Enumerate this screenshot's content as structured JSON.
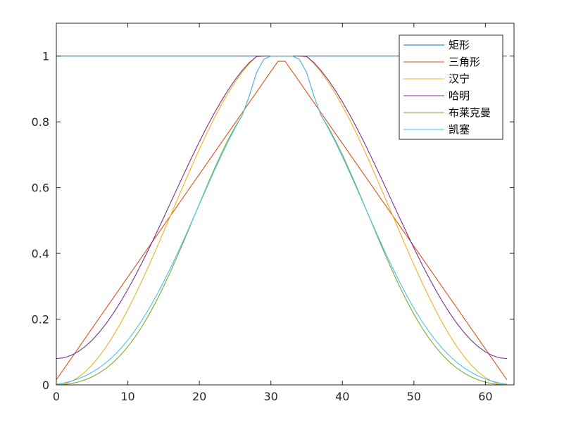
{
  "chart_data": {
    "type": "line",
    "title": "",
    "xlabel": "",
    "ylabel": "",
    "xlim": [
      0,
      64
    ],
    "ylim": [
      0,
      1.1
    ],
    "x_ticks": [
      0,
      10,
      20,
      30,
      40,
      50,
      60
    ],
    "y_ticks": [
      0,
      0.2,
      0.4,
      0.6,
      0.8,
      1
    ],
    "x_tick_labels": [
      "0",
      "10",
      "20",
      "30",
      "40",
      "50",
      "60"
    ],
    "y_tick_labels": [
      "0",
      "0.2",
      "0.4",
      "0.6",
      "0.8",
      "1"
    ],
    "grid": false,
    "legend_position": "top-right",
    "x": [
      0,
      1,
      2,
      3,
      4,
      5,
      6,
      7,
      8,
      9,
      10,
      11,
      12,
      13,
      14,
      15,
      16,
      17,
      18,
      19,
      20,
      21,
      22,
      23,
      24,
      25,
      26,
      27,
      28,
      29,
      30,
      31,
      32,
      33,
      34,
      35,
      36,
      37,
      38,
      39,
      40,
      41,
      42,
      43,
      44,
      45,
      46,
      47,
      48,
      49,
      50,
      51,
      52,
      53,
      54,
      55,
      56,
      57,
      58,
      59,
      60,
      61,
      62,
      63
    ],
    "series": [
      {
        "name": "矩形",
        "color": "#0072BD",
        "values": [
          1,
          1,
          1,
          1,
          1,
          1,
          1,
          1,
          1,
          1,
          1,
          1,
          1,
          1,
          1,
          1,
          1,
          1,
          1,
          1,
          1,
          1,
          1,
          1,
          1,
          1,
          1,
          1,
          1,
          1,
          1,
          1,
          1,
          1,
          1,
          1,
          1,
          1,
          1,
          1,
          1,
          1,
          1,
          1,
          1,
          1,
          1,
          1,
          1,
          1,
          1,
          1,
          1,
          1,
          1,
          1,
          1,
          1,
          1,
          1,
          1,
          1,
          1,
          1
        ]
      },
      {
        "name": "三角形",
        "color": "#D95319",
        "values": [
          0.0156,
          0.0469,
          0.0781,
          0.1094,
          0.1406,
          0.1719,
          0.2031,
          0.2344,
          0.2656,
          0.2969,
          0.3281,
          0.3594,
          0.3906,
          0.4219,
          0.4531,
          0.4844,
          0.5156,
          0.5469,
          0.5781,
          0.6094,
          0.6406,
          0.6719,
          0.7031,
          0.7344,
          0.7656,
          0.7969,
          0.8281,
          0.8594,
          0.8906,
          0.9219,
          0.9531,
          0.9844,
          0.9844,
          0.9531,
          0.9219,
          0.8906,
          0.8594,
          0.8281,
          0.7969,
          0.7656,
          0.7344,
          0.7031,
          0.6719,
          0.6406,
          0.6094,
          0.5781,
          0.5469,
          0.5156,
          0.4844,
          0.4531,
          0.4219,
          0.3906,
          0.3594,
          0.3281,
          0.2969,
          0.2656,
          0.2344,
          0.2031,
          0.1719,
          0.1406,
          0.1094,
          0.0781,
          0.0469,
          0.0156
        ]
      },
      {
        "name": "汉宁",
        "color": "#EDB120",
        "values": [
          0,
          0.0025,
          0.0099,
          0.0222,
          0.0393,
          0.0609,
          0.0868,
          0.1168,
          0.1507,
          0.1882,
          0.2288,
          0.2722,
          0.318,
          0.3658,
          0.4151,
          0.4655,
          0.5166,
          0.5677,
          0.6184,
          0.6683,
          0.7167,
          0.7632,
          0.8074,
          0.8487,
          0.8868,
          0.9212,
          0.9515,
          0.9775,
          0.9987,
          1.0,
          1.0,
          1.0,
          1.0,
          1.0,
          1.0,
          0.9987,
          0.9775,
          0.9515,
          0.9212,
          0.8868,
          0.8487,
          0.8074,
          0.7632,
          0.7167,
          0.6683,
          0.6184,
          0.5677,
          0.5166,
          0.4655,
          0.4151,
          0.3658,
          0.318,
          0.2722,
          0.2288,
          0.1882,
          0.1507,
          0.1168,
          0.0868,
          0.0609,
          0.0393,
          0.0222,
          0.0099,
          0.0025,
          0
        ]
      },
      {
        "name": "哈明",
        "color": "#7E2F8E",
        "values": [
          0.08,
          0.0823,
          0.0891,
          0.1004,
          0.1161,
          0.136,
          0.1599,
          0.1875,
          0.2186,
          0.2531,
          0.2905,
          0.3304,
          0.3726,
          0.4165,
          0.4619,
          0.5083,
          0.5552,
          0.6023,
          0.6489,
          0.6948,
          0.7394,
          0.7822,
          0.8229,
          0.861,
          0.8961,
          0.928,
          0.9563,
          0.9807,
          0.9987,
          1.0,
          1.0,
          1.0,
          1.0,
          1.0,
          1.0,
          0.9987,
          0.9807,
          0.9563,
          0.928,
          0.8961,
          0.861,
          0.8229,
          0.7822,
          0.7394,
          0.6948,
          0.6489,
          0.6023,
          0.5552,
          0.5083,
          0.4619,
          0.4165,
          0.3726,
          0.3304,
          0.2905,
          0.2531,
          0.2186,
          0.1875,
          0.1599,
          0.136,
          0.1161,
          0.1004,
          0.0891,
          0.0823,
          0.08
        ]
      },
      {
        "name": "布莱克曼",
        "color": "#77AC30",
        "values": [
          0,
          0.0009,
          0.0036,
          0.0083,
          0.0151,
          0.0243,
          0.0362,
          0.0511,
          0.0692,
          0.0909,
          0.1162,
          0.1454,
          0.1784,
          0.2152,
          0.2556,
          0.2993,
          0.346,
          0.3951,
          0.446,
          0.498,
          0.5503,
          0.602,
          0.6523,
          0.7001,
          0.7446,
          0.7848,
          0.82,
          0.88,
          0.95,
          0.99,
          1.0,
          1.0,
          1.0,
          1.0,
          0.99,
          0.95,
          0.88,
          0.82,
          0.7848,
          0.7446,
          0.7001,
          0.6523,
          0.602,
          0.5503,
          0.498,
          0.446,
          0.3951,
          0.346,
          0.2993,
          0.2556,
          0.2152,
          0.1784,
          0.1454,
          0.1162,
          0.0909,
          0.0692,
          0.0511,
          0.0362,
          0.0243,
          0.0151,
          0.0083,
          0.0036,
          0.0009,
          0
        ]
      },
      {
        "name": "凯塞",
        "color": "#4DBEEE",
        "values": [
          0.0023,
          0.0059,
          0.011,
          0.018,
          0.027,
          0.0382,
          0.052,
          0.0685,
          0.088,
          0.1105,
          0.1363,
          0.1654,
          0.1977,
          0.2332,
          0.2718,
          0.3131,
          0.3569,
          0.4029,
          0.4505,
          0.4994,
          0.5488,
          0.5982,
          0.6468,
          0.6941,
          0.7393,
          0.7817,
          0.8207,
          0.88,
          0.95,
          0.99,
          1.0,
          1.0,
          1.0,
          1.0,
          0.99,
          0.95,
          0.88,
          0.8207,
          0.7817,
          0.7393,
          0.6941,
          0.6468,
          0.5982,
          0.5488,
          0.4994,
          0.4505,
          0.4029,
          0.3569,
          0.3131,
          0.2718,
          0.2332,
          0.1977,
          0.1654,
          0.1363,
          0.1105,
          0.088,
          0.0685,
          0.052,
          0.0382,
          0.027,
          0.018,
          0.011,
          0.0059,
          0.0023
        ]
      }
    ]
  }
}
